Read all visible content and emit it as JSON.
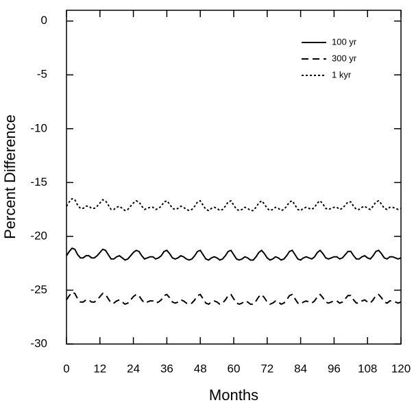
{
  "chart_data": {
    "type": "line",
    "ylabel": "Percent Difference",
    "xlabel": "Months",
    "x": [
      0,
      1,
      2,
      3,
      4,
      5,
      6,
      7,
      8,
      9,
      10,
      11,
      12,
      13,
      14,
      15,
      16,
      17,
      18,
      19,
      20,
      21,
      22,
      23,
      24,
      25,
      26,
      27,
      28,
      29,
      30,
      31,
      32,
      33,
      34,
      35,
      36,
      37,
      38,
      39,
      40,
      41,
      42,
      43,
      44,
      45,
      46,
      47,
      48,
      49,
      50,
      51,
      52,
      53,
      54,
      55,
      56,
      57,
      58,
      59,
      60,
      61,
      62,
      63,
      64,
      65,
      66,
      67,
      68,
      69,
      70,
      71,
      72,
      73,
      74,
      75,
      76,
      77,
      78,
      79,
      80,
      81,
      82,
      83,
      84,
      85,
      86,
      87,
      88,
      89,
      90,
      91,
      92,
      93,
      94,
      95,
      96,
      97,
      98,
      99,
      100,
      101,
      102,
      103,
      104,
      105,
      106,
      107,
      108,
      109,
      110,
      111,
      112,
      113,
      114,
      115,
      116,
      117,
      118,
      119,
      120
    ],
    "series": [
      {
        "name": "100 yr",
        "color": "#000000",
        "line_style": "solid",
        "values": [
          -21.8,
          -21.4,
          -21.1,
          -21.2,
          -21.7,
          -22.0,
          -22.0,
          -21.8,
          -21.8,
          -22.0,
          -22.0,
          -21.8,
          -21.5,
          -21.2,
          -21.3,
          -21.7,
          -22.1,
          -22.1,
          -21.9,
          -21.8,
          -22.0,
          -22.2,
          -22.1,
          -21.8,
          -21.5,
          -21.3,
          -21.4,
          -21.8,
          -22.1,
          -22.0,
          -21.9,
          -21.9,
          -22.1,
          -22.0,
          -21.8,
          -21.4,
          -21.3,
          -21.6,
          -22.0,
          -22.1,
          -22.0,
          -21.8,
          -21.9,
          -22.1,
          -22.2,
          -22.1,
          -21.8,
          -21.4,
          -21.3,
          -21.7,
          -22.1,
          -22.2,
          -22.0,
          -21.9,
          -22.0,
          -22.2,
          -22.1,
          -21.8,
          -21.4,
          -21.3,
          -21.7,
          -22.1,
          -22.2,
          -22.1,
          -21.9,
          -22.0,
          -22.2,
          -22.2,
          -21.9,
          -21.5,
          -21.3,
          -21.6,
          -22.0,
          -22.2,
          -22.1,
          -21.9,
          -22.0,
          -22.2,
          -22.1,
          -21.8,
          -21.4,
          -21.3,
          -21.7,
          -22.1,
          -22.2,
          -22.0,
          -21.9,
          -22.0,
          -22.1,
          -21.9,
          -21.5,
          -21.3,
          -21.6,
          -22.0,
          -22.1,
          -22.0,
          -21.9,
          -21.9,
          -22.1,
          -22.0,
          -21.7,
          -21.4,
          -21.4,
          -21.8,
          -22.1,
          -22.1,
          -21.9,
          -21.8,
          -22.0,
          -22.1,
          -21.8,
          -21.4,
          -21.3,
          -21.6,
          -22.0,
          -22.1,
          -21.9,
          -21.9,
          -22.0,
          -22.1,
          -22.0
        ]
      },
      {
        "name": "300 yr",
        "color": "#000000",
        "line_style": "dashed",
        "values": [
          -25.9,
          -25.5,
          -25.2,
          -25.3,
          -25.8,
          -26.1,
          -26.1,
          -25.9,
          -25.9,
          -26.1,
          -26.1,
          -25.9,
          -25.6,
          -25.3,
          -25.4,
          -25.8,
          -26.2,
          -26.2,
          -26.0,
          -25.9,
          -26.1,
          -26.3,
          -26.2,
          -25.9,
          -25.6,
          -25.4,
          -25.5,
          -25.9,
          -26.2,
          -26.1,
          -26.0,
          -26.0,
          -26.2,
          -26.1,
          -25.9,
          -25.5,
          -25.4,
          -25.7,
          -26.1,
          -26.2,
          -26.1,
          -25.9,
          -26.0,
          -26.2,
          -26.3,
          -26.2,
          -25.9,
          -25.5,
          -25.4,
          -25.8,
          -26.2,
          -26.3,
          -26.1,
          -26.0,
          -26.1,
          -26.3,
          -26.2,
          -25.9,
          -25.5,
          -25.4,
          -25.8,
          -26.2,
          -26.3,
          -26.2,
          -26.0,
          -26.1,
          -26.3,
          -26.3,
          -26.0,
          -25.6,
          -25.4,
          -25.7,
          -26.1,
          -26.3,
          -26.2,
          -26.0,
          -26.1,
          -26.3,
          -26.2,
          -25.9,
          -25.5,
          -25.4,
          -25.8,
          -26.2,
          -26.3,
          -26.1,
          -26.0,
          -26.1,
          -26.2,
          -26.0,
          -25.6,
          -25.4,
          -25.7,
          -26.1,
          -26.2,
          -26.1,
          -26.0,
          -26.0,
          -26.2,
          -26.1,
          -25.8,
          -25.5,
          -25.5,
          -25.9,
          -26.2,
          -26.2,
          -26.0,
          -25.9,
          -26.1,
          -26.2,
          -25.9,
          -25.5,
          -25.4,
          -25.7,
          -26.1,
          -26.2,
          -26.0,
          -26.0,
          -26.1,
          -26.2,
          -26.1
        ]
      },
      {
        "name": "1 kyr",
        "color": "#000000",
        "line_style": "dotted",
        "values": [
          -17.2,
          -16.8,
          -16.5,
          -16.6,
          -17.1,
          -17.4,
          -17.4,
          -17.2,
          -17.2,
          -17.4,
          -17.4,
          -17.2,
          -16.9,
          -16.6,
          -16.7,
          -17.1,
          -17.5,
          -17.5,
          -17.3,
          -17.2,
          -17.4,
          -17.6,
          -17.5,
          -17.2,
          -16.9,
          -16.7,
          -16.8,
          -17.2,
          -17.5,
          -17.4,
          -17.3,
          -17.3,
          -17.5,
          -17.4,
          -17.2,
          -16.8,
          -16.7,
          -17.0,
          -17.4,
          -17.5,
          -17.4,
          -17.2,
          -17.3,
          -17.5,
          -17.6,
          -17.5,
          -17.2,
          -16.8,
          -16.7,
          -17.1,
          -17.5,
          -17.6,
          -17.4,
          -17.3,
          -17.4,
          -17.6,
          -17.5,
          -17.2,
          -16.8,
          -16.7,
          -17.1,
          -17.5,
          -17.6,
          -17.5,
          -17.3,
          -17.4,
          -17.6,
          -17.6,
          -17.3,
          -16.9,
          -16.7,
          -17.0,
          -17.4,
          -17.6,
          -17.5,
          -17.3,
          -17.4,
          -17.6,
          -17.5,
          -17.2,
          -16.8,
          -16.7,
          -17.1,
          -17.5,
          -17.6,
          -17.4,
          -17.3,
          -17.4,
          -17.5,
          -17.3,
          -16.9,
          -16.7,
          -17.0,
          -17.4,
          -17.5,
          -17.4,
          -17.3,
          -17.3,
          -17.5,
          -17.4,
          -17.1,
          -16.8,
          -16.8,
          -17.2,
          -17.5,
          -17.5,
          -17.3,
          -17.2,
          -17.4,
          -17.5,
          -17.2,
          -16.8,
          -16.7,
          -17.0,
          -17.4,
          -17.5,
          -17.3,
          -17.3,
          -17.4,
          -17.5,
          -17.4
        ]
      }
    ],
    "xlim": [
      0,
      120
    ],
    "xticks": [
      0,
      12,
      24,
      36,
      48,
      60,
      72,
      84,
      96,
      108,
      120
    ],
    "ylim": [
      -30,
      1
    ],
    "yticks": [
      0,
      -5,
      -10,
      -15,
      -20,
      -25,
      -30
    ],
    "legend": "upper right",
    "grid": false
  }
}
